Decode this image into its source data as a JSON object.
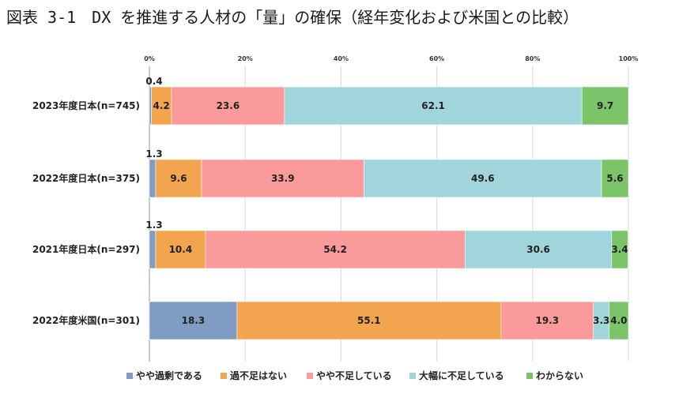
{
  "title": "図表 3-1　DX を推進する人材の「量」の確保（経年変化および米国との比較）",
  "chart_data": {
    "type": "bar",
    "orientation": "horizontal",
    "stacked": true,
    "xlim": [
      0,
      100
    ],
    "ticks": [
      "0%",
      "20%",
      "40%",
      "60%",
      "80%",
      "100%"
    ],
    "tick_values": [
      0,
      20,
      40,
      60,
      80,
      100
    ],
    "categories": [
      "2023年度日本(n=745)",
      "2022年度日本(n=375)",
      "2021年度日本(n=297)",
      "2022年度米国(n=301)"
    ],
    "series": [
      {
        "name": "やや過剰である",
        "color": "#7f9cc2",
        "values": [
          0.4,
          1.3,
          1.3,
          18.3
        ],
        "labels": [
          "0.4",
          "1.3",
          "1.3",
          "18.3"
        ]
      },
      {
        "name": "過不足はない",
        "color": "#f2a44e",
        "values": [
          4.2,
          9.6,
          10.4,
          55.1
        ],
        "labels": [
          "4.2",
          "9.6",
          "10.4",
          "55.1"
        ]
      },
      {
        "name": "やや不足している",
        "color": "#fb9a9a",
        "values": [
          23.6,
          33.9,
          54.2,
          19.3
        ],
        "labels": [
          "23.6",
          "33.9",
          "54.2",
          "19.3"
        ]
      },
      {
        "name": "大幅に不足している",
        "color": "#9fd5db",
        "values": [
          62.1,
          49.6,
          30.6,
          3.3
        ],
        "labels": [
          "62.1",
          "49.6",
          "30.6",
          "3.3"
        ]
      },
      {
        "name": "わからない",
        "color": "#7cc46a",
        "values": [
          9.7,
          5.6,
          3.4,
          4.0
        ],
        "labels": [
          "9.7",
          "5.6",
          "3.4",
          "4.0"
        ]
      }
    ],
    "legend": "bottom"
  }
}
